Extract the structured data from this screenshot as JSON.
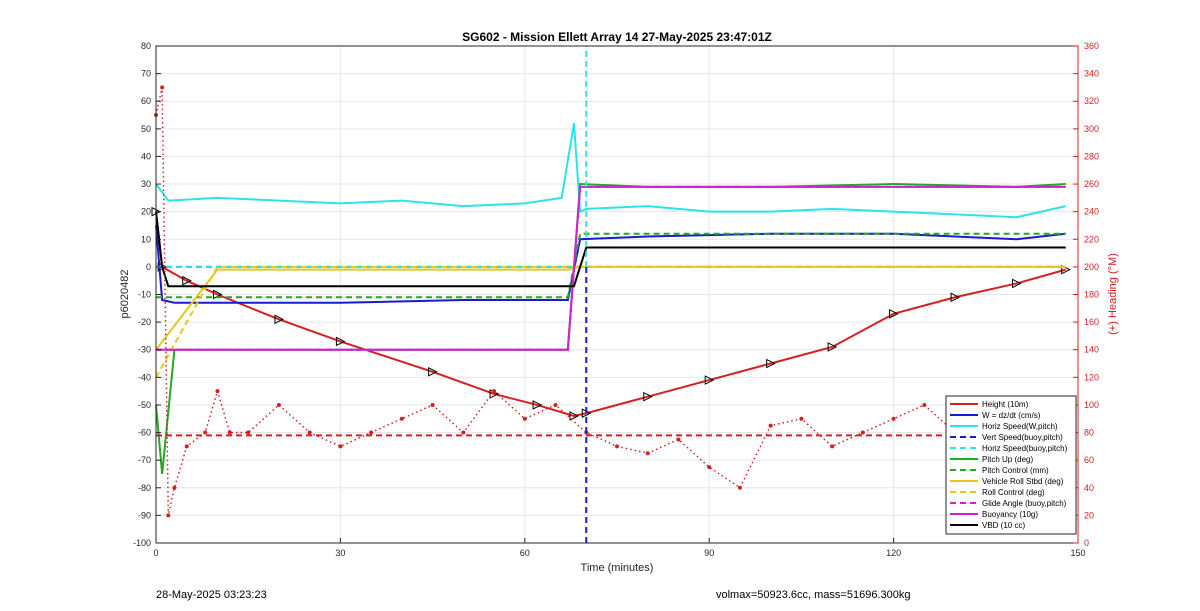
{
  "chart_data": {
    "type": "line",
    "title": "SG602 - Mission Ellett Array 14 27-May-2025 23:47:01Z",
    "xlabel": "Time (minutes)",
    "ylabel": "p6020482",
    "y2label": "(+) Heading (°M)",
    "xlim": [
      0,
      150
    ],
    "ylim": [
      -100,
      80
    ],
    "y2lim": [
      0,
      360
    ],
    "xticks": [
      "0",
      "30",
      "60",
      "90",
      "120",
      "150"
    ],
    "yticks": [
      "-100",
      "-90",
      "-80",
      "-70",
      "-60",
      "-50",
      "-40",
      "-30",
      "-20",
      "-10",
      "0",
      "10",
      "20",
      "30",
      "40",
      "50",
      "60",
      "70",
      "80"
    ],
    "y2ticks": [
      "0",
      "20",
      "40",
      "60",
      "80",
      "100",
      "120",
      "140",
      "160",
      "180",
      "200",
      "220",
      "240",
      "260",
      "280",
      "300",
      "320",
      "340",
      "360"
    ],
    "grid": true,
    "legend_position": "bottom-right",
    "legend": [
      "Height (10m)",
      "W = dz/dt (cm/s)",
      "Horiz Speed(W,pitch)",
      "Vert Speed(buoy,pitch)",
      "Horiz Speed(buoy,pitch)",
      "Pitch Up (deg)",
      "Pitch Control (mm)",
      "Vehicle Roll Stbd (deg)",
      "Roll Control (deg)",
      "Glide Angle (buoy,pitch)",
      "Buoyancy (10g)",
      "VBD (10 cc)"
    ],
    "series": [
      {
        "name": "Height (10m)",
        "color": "#d62020",
        "style": "solid",
        "x": [
          0,
          1,
          5,
          10,
          20,
          30,
          45,
          55,
          62,
          68,
          70,
          80,
          90,
          100,
          110,
          120,
          130,
          140,
          148
        ],
        "y": [
          20,
          0,
          -5,
          -10,
          -19,
          -27,
          -38,
          -46,
          -50,
          -54,
          -53,
          -47,
          -41,
          -35,
          -29,
          -17,
          -11,
          -6,
          -1
        ]
      },
      {
        "name": "W = dz/dt (cm/s)",
        "color": "#1a1ad0",
        "style": "solid",
        "x": [
          0,
          1,
          3,
          10,
          30,
          50,
          67,
          69,
          80,
          100,
          120,
          140,
          148
        ],
        "y": [
          15,
          -12,
          -13,
          -13,
          -13,
          -12,
          -12,
          10,
          11,
          12,
          12,
          10,
          12
        ]
      },
      {
        "name": "Horiz Speed(W,pitch)",
        "color": "#29e5ea",
        "style": "solid",
        "x": [
          0,
          2,
          10,
          20,
          30,
          40,
          50,
          60,
          66,
          68,
          69,
          70,
          80,
          90,
          100,
          110,
          120,
          130,
          140,
          148
        ],
        "y": [
          30,
          24,
          25,
          24,
          23,
          24,
          22,
          23,
          25,
          52,
          20,
          21,
          22,
          20,
          20,
          21,
          20,
          19,
          18,
          22
        ]
      },
      {
        "name": "Vert Speed(buoy,pitch)",
        "color": "#1a1ad0",
        "style": "dashed",
        "x": [
          0,
          70,
          148
        ],
        "y": [
          0,
          0,
          0
        ]
      },
      {
        "name": "Horiz Speed(buoy,pitch)",
        "color": "#29e5ea",
        "style": "dashed",
        "x": [
          0,
          70,
          148
        ],
        "y": [
          0,
          0,
          0
        ]
      },
      {
        "name": "Pitch Up (deg)",
        "color": "#1faa1f",
        "style": "solid",
        "x": [
          0,
          1,
          3,
          10,
          30,
          50,
          67,
          69,
          80,
          100,
          120,
          140,
          148
        ],
        "y": [
          -50,
          -75,
          -30,
          -30,
          -30,
          -30,
          -30,
          30,
          29,
          29,
          30,
          29,
          30
        ]
      },
      {
        "name": "Pitch Control (mm)",
        "color": "#1faa1f",
        "style": "dashed",
        "x": [
          0,
          3,
          67,
          69,
          148
        ],
        "y": [
          -11,
          -11,
          -11,
          12,
          12
        ]
      },
      {
        "name": "Vehicle Roll Stbd (deg)",
        "color": "#e5c81f",
        "style": "solid",
        "x": [
          0,
          10,
          20,
          30,
          40,
          50,
          60,
          67,
          69,
          80,
          100,
          120,
          140,
          148
        ],
        "y": [
          -30,
          -1,
          -1,
          -1,
          -1,
          -1,
          -1,
          -1,
          0,
          0,
          0,
          0,
          0,
          0
        ]
      },
      {
        "name": "Roll Control (deg)",
        "color": "#e5c81f",
        "style": "dashed",
        "x": [
          0,
          10,
          30,
          60,
          70,
          90,
          120,
          130,
          148
        ],
        "y": [
          -40,
          0,
          0,
          0,
          0,
          0,
          0,
          0,
          0
        ]
      },
      {
        "name": "Glide Angle (buoy,pitch)",
        "color": "#d020d0",
        "style": "dashed",
        "x": [
          0,
          3,
          67,
          69,
          148
        ],
        "y": [
          -30,
          -30,
          -30,
          29,
          29
        ]
      },
      {
        "name": "Buoyancy (10g)",
        "color": "#d020d0",
        "style": "solid",
        "x": [
          0,
          3,
          67,
          69,
          148
        ],
        "y": [
          -30,
          -30,
          -30,
          29,
          29
        ]
      },
      {
        "name": "VBD (10 cc)",
        "color": "#000000",
        "style": "solid",
        "x": [
          0,
          1,
          2,
          68,
          70,
          146,
          148
        ],
        "y": [
          20,
          0,
          -7,
          -7,
          7,
          7,
          7
        ]
      },
      {
        "name": "Heading",
        "axis": "right",
        "color": "#d62020",
        "style": "dotted",
        "x": [
          0,
          1,
          2,
          3,
          5,
          8,
          10,
          12,
          15,
          20,
          25,
          30,
          35,
          40,
          45,
          50,
          55,
          60,
          65,
          70,
          75,
          80,
          85,
          90,
          95,
          100,
          105,
          110,
          115,
          120,
          125,
          130,
          135,
          140,
          145,
          148
        ],
        "y": [
          310,
          330,
          20,
          40,
          70,
          80,
          110,
          80,
          80,
          100,
          80,
          70,
          80,
          90,
          100,
          80,
          110,
          90,
          100,
          80,
          70,
          65,
          75,
          55,
          40,
          85,
          90,
          70,
          80,
          90,
          100,
          80,
          70,
          75,
          60,
          90
        ]
      },
      {
        "name": "Heading reference",
        "axis": "right",
        "color": "#d62020",
        "style": "dashed",
        "x": [
          0,
          148
        ],
        "y": [
          78,
          78
        ]
      },
      {
        "name": "Apogee",
        "axis": "x-vertical",
        "color": "#29e5ea",
        "style": "dashed",
        "x": [
          70,
          70
        ],
        "y": [
          0,
          80
        ]
      },
      {
        "name": "Apogee W",
        "axis": "x-vertical",
        "color": "#1a1ad0",
        "style": "dashed",
        "x": [
          70,
          70
        ],
        "y": [
          -100,
          0
        ]
      }
    ]
  },
  "footer": {
    "left": "28-May-2025 03:23:23",
    "right": "volmax=50923.6cc, mass=51696.300kg"
  }
}
